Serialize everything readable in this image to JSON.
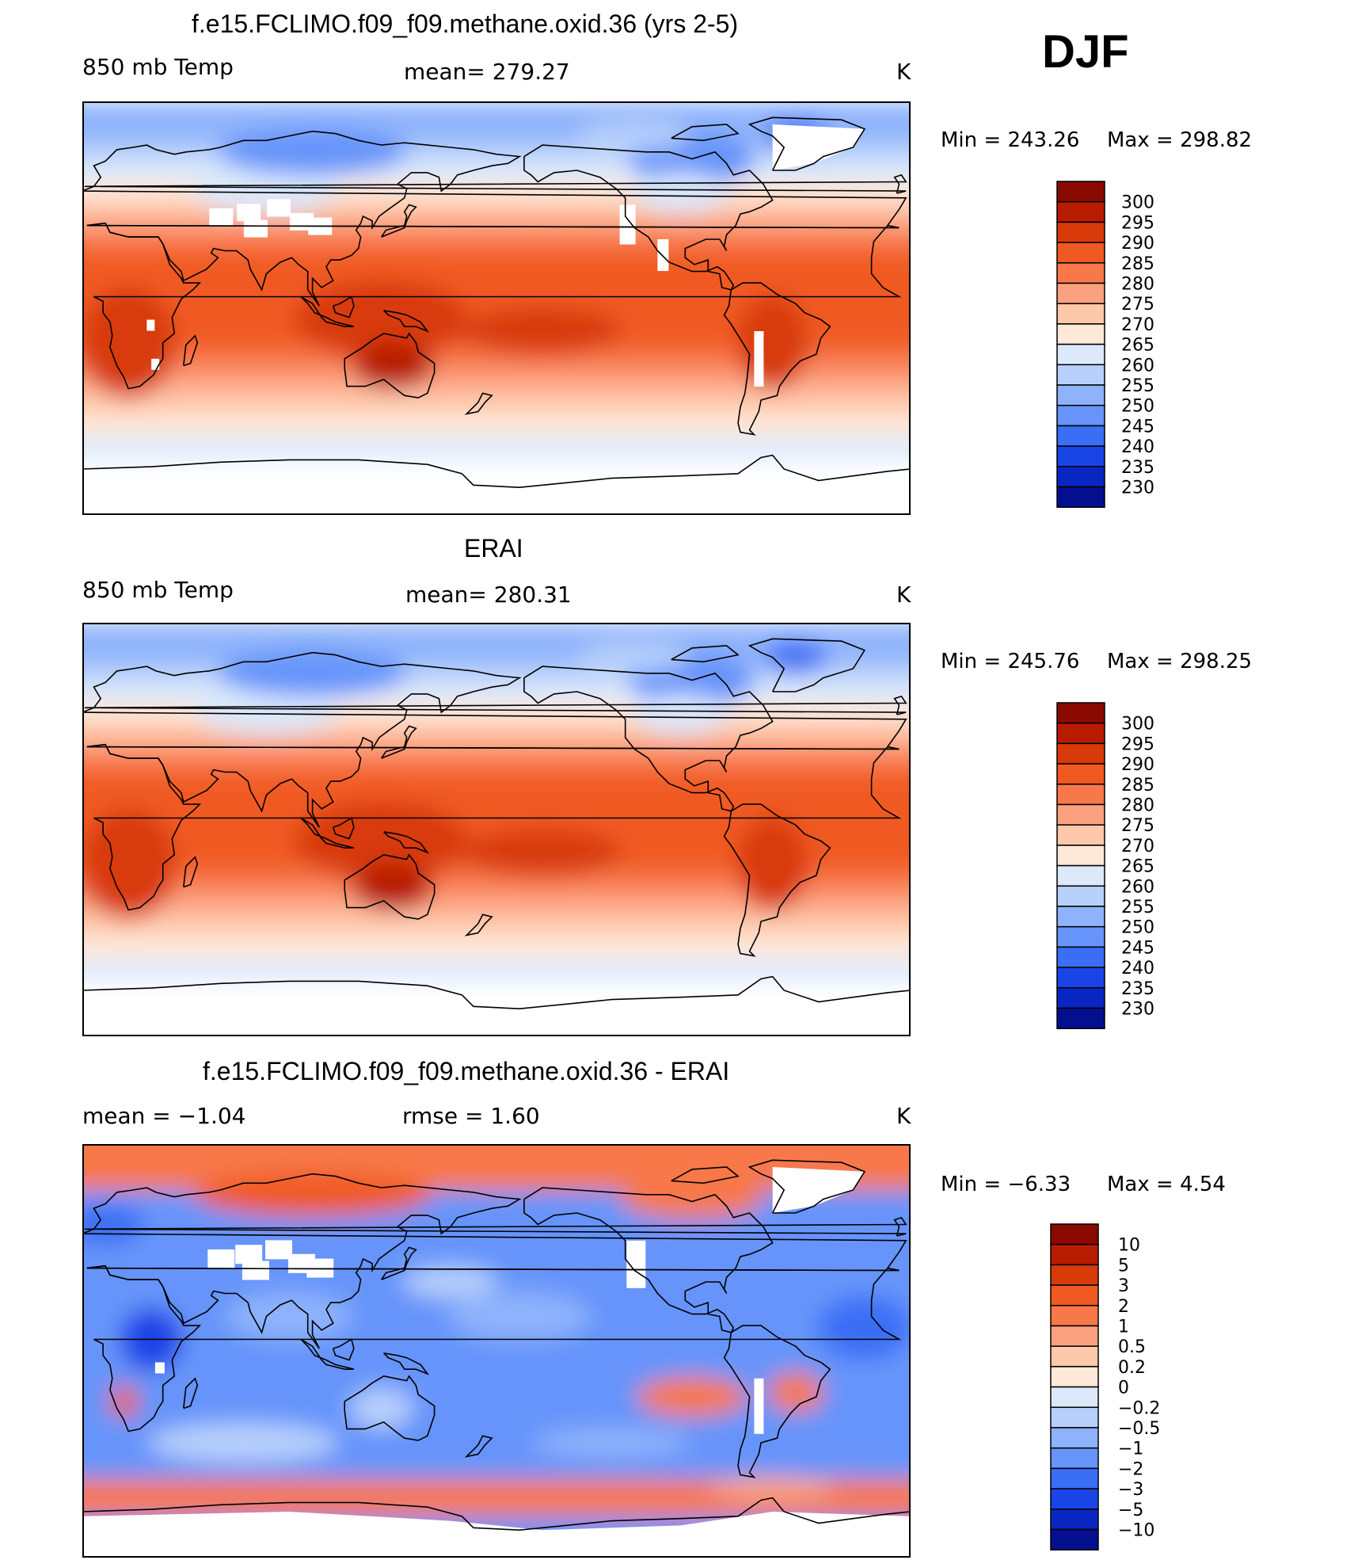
{
  "season": "DJF",
  "units": "K",
  "panels": [
    {
      "id": "model",
      "title": "f.e15.FCLIMO.f09_f09.methane.oxid.36 (yrs 2-5)",
      "left_label": "850 mb Temp",
      "center_label": "mean=  279.27",
      "right_label": "K",
      "min_label": "Min  =  243.26",
      "max_label": "Max  =  298.82",
      "colorbar": {
        "ticks": [
          "300",
          "295",
          "290",
          "285",
          "280",
          "275",
          "270",
          "265",
          "260",
          "255",
          "250",
          "245",
          "240",
          "235",
          "230"
        ],
        "colors": [
          "#8b0a00",
          "#b81c00",
          "#d83a0a",
          "#f05a22",
          "#f8784a",
          "#fca180",
          "#fec8aa",
          "#fee8d8",
          "#dbe9fb",
          "#b7d0fb",
          "#8fb3fb",
          "#6694fa",
          "#3a6ef5",
          "#1a45e6",
          "#0a26c2",
          "#040f8f"
        ]
      }
    },
    {
      "id": "obs",
      "title": "ERAI",
      "left_label": "850 mb Temp",
      "center_label": "mean=  280.31",
      "right_label": "K",
      "min_label": "Min  =  245.76",
      "max_label": "Max  =  298.25",
      "colorbar": {
        "ticks": [
          "300",
          "295",
          "290",
          "285",
          "280",
          "275",
          "270",
          "265",
          "260",
          "255",
          "250",
          "245",
          "240",
          "235",
          "230"
        ],
        "colors": [
          "#8b0a00",
          "#b81c00",
          "#d83a0a",
          "#f05a22",
          "#f8784a",
          "#fca180",
          "#fec8aa",
          "#fee8d8",
          "#dbe9fb",
          "#b7d0fb",
          "#8fb3fb",
          "#6694fa",
          "#3a6ef5",
          "#1a45e6",
          "#0a26c2",
          "#040f8f"
        ]
      }
    },
    {
      "id": "diff",
      "title": "f.e15.FCLIMO.f09_f09.methane.oxid.36 - ERAI",
      "left_label": "mean  =     −1.04",
      "center_label": "rmse  =      1.60",
      "right_label": "K",
      "min_label": "Min  =     −6.33",
      "max_label": "Max  =       4.54",
      "colorbar": {
        "ticks": [
          "10",
          "5",
          "3",
          "2",
          "1",
          "0.5",
          "0.2",
          "0",
          "−0.2",
          "−0.5",
          "−1",
          "−2",
          "−3",
          "−5",
          "−10"
        ],
        "colors": [
          "#8b0a00",
          "#b81c00",
          "#d83a0a",
          "#f05a22",
          "#f8784a",
          "#fca180",
          "#fec8aa",
          "#fee8d8",
          "#dbe9fb",
          "#b7d0fb",
          "#8fb3fb",
          "#6694fa",
          "#3a6ef5",
          "#1a45e6",
          "#0a26c2",
          "#040f8f"
        ]
      }
    }
  ]
}
